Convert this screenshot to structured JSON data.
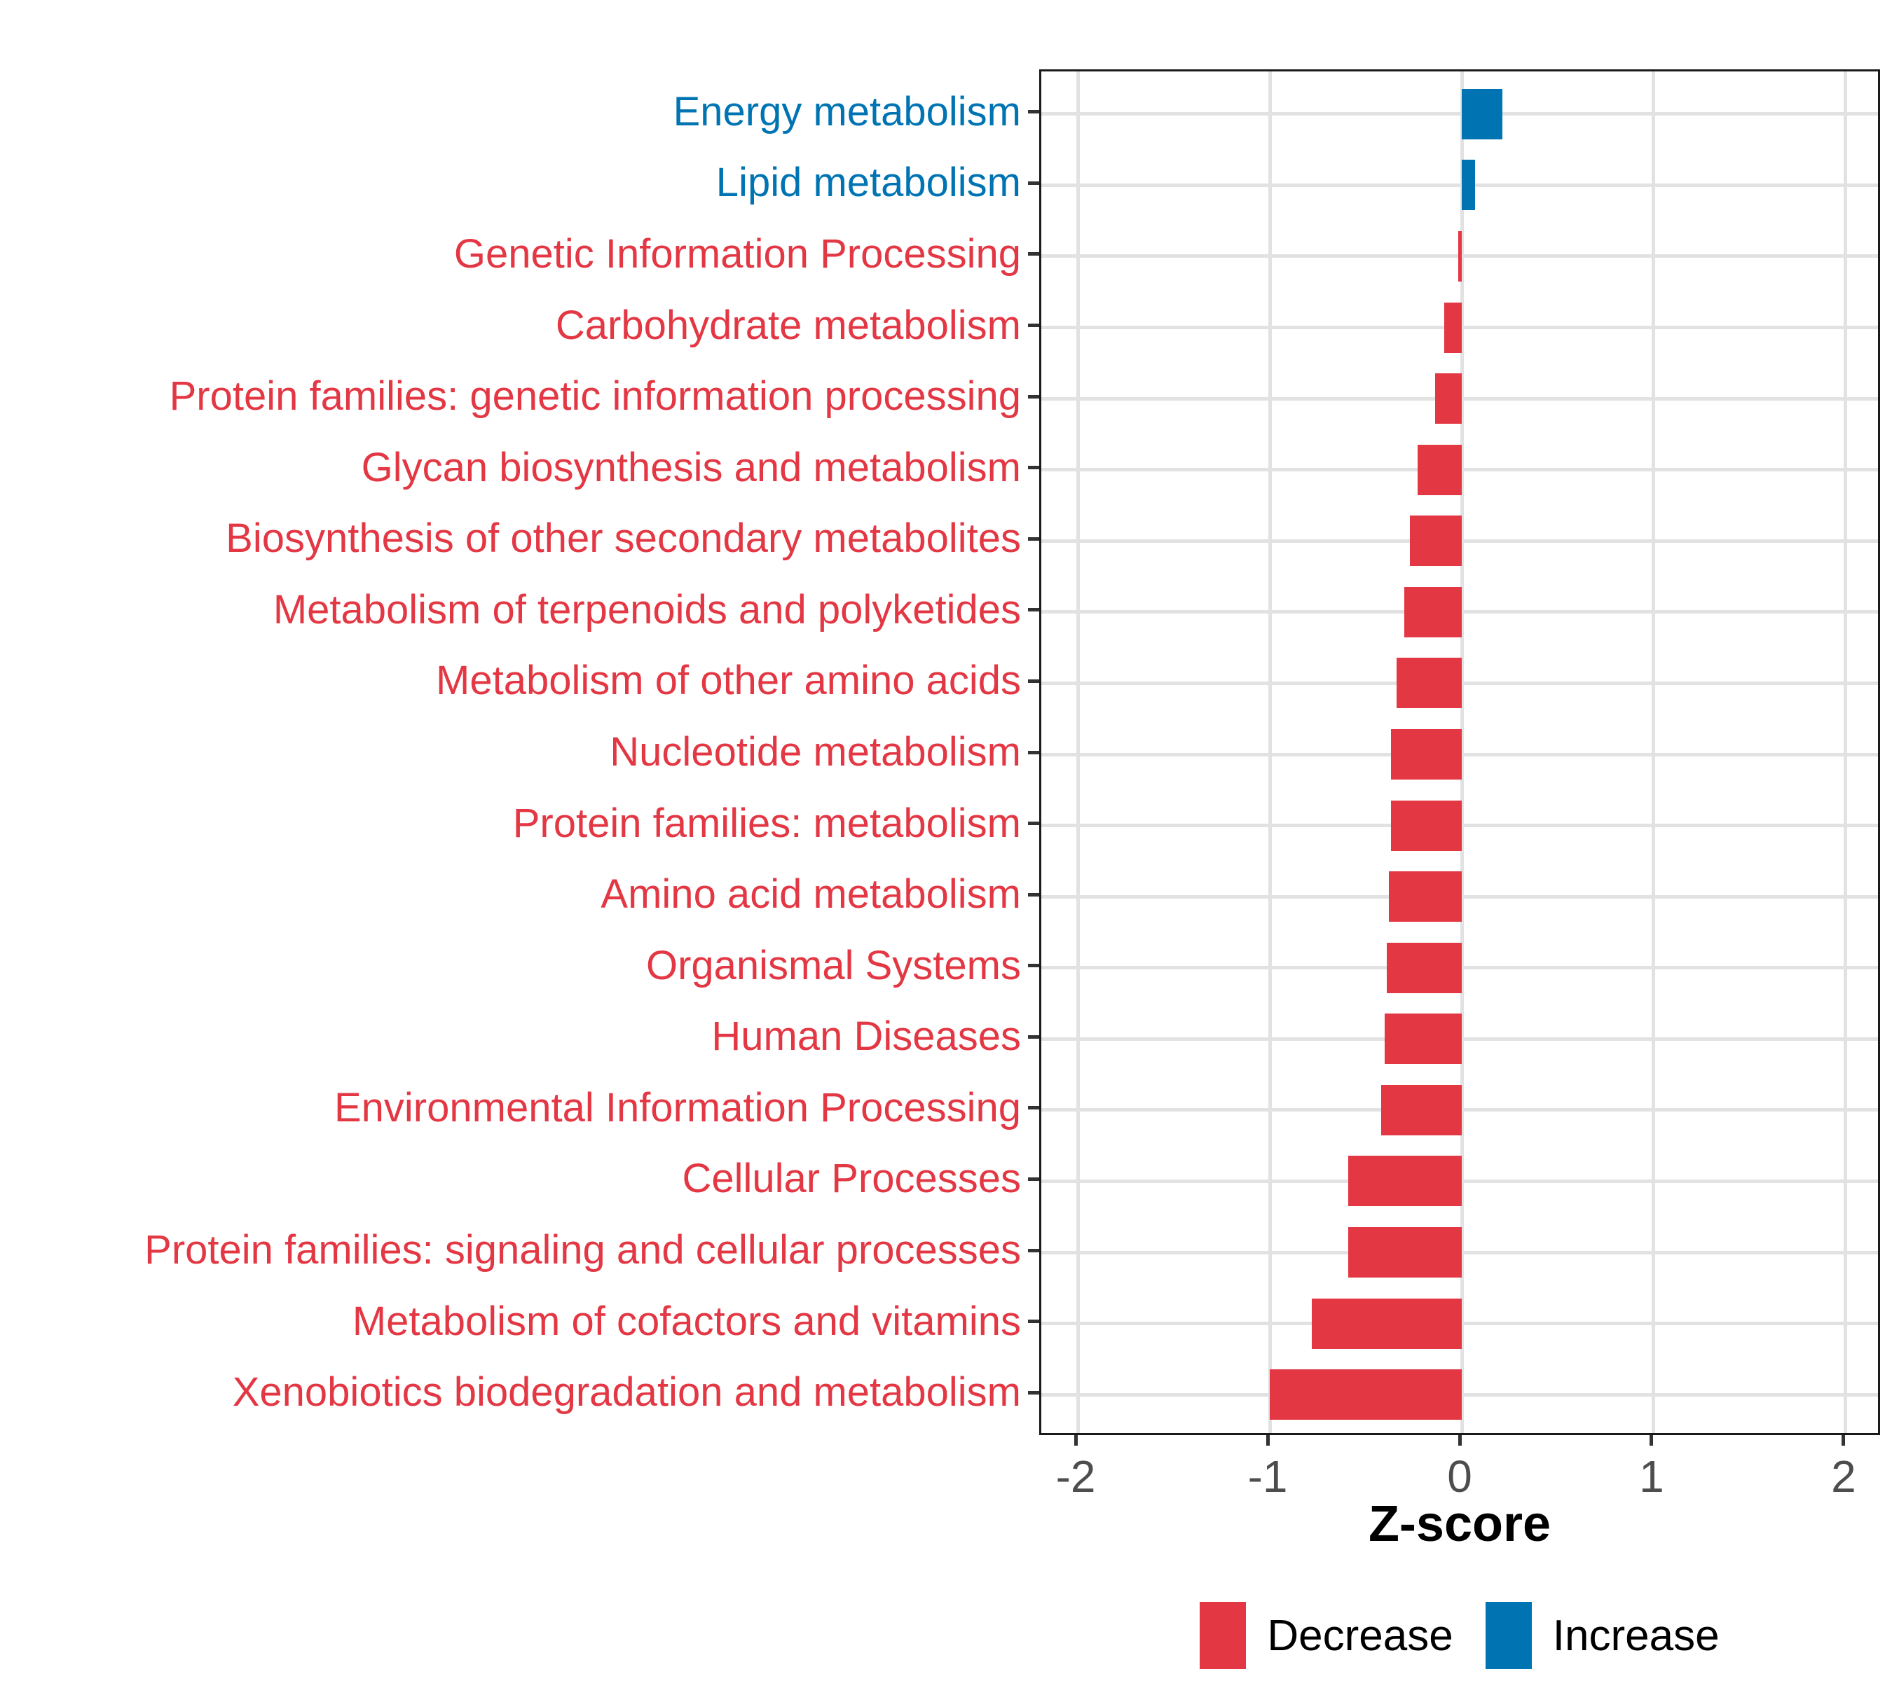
{
  "chart_data": {
    "type": "bar",
    "orientation": "horizontal",
    "xlabel": "Z-score",
    "x_ticks": [
      "-2",
      "-1",
      "0",
      "1",
      "2"
    ],
    "x_tick_values": [
      -2,
      -1,
      0,
      1,
      2
    ],
    "xlim": [
      -2.19,
      2.19
    ],
    "grid": "major-on",
    "legend_position": "bottom",
    "categories": [
      "Energy metabolism",
      "Lipid metabolism",
      "Genetic Information Processing",
      "Carbohydrate metabolism",
      "Protein families: genetic information processing",
      "Glycan biosynthesis and metabolism",
      "Biosynthesis of other secondary metabolites",
      "Metabolism of terpenoids and polyketides",
      "Metabolism of other amino acids",
      "Nucleotide metabolism",
      "Protein families: metabolism",
      "Amino acid metabolism",
      "Organismal Systems",
      "Human Diseases",
      "Environmental Information Processing",
      "Cellular Processes",
      "Protein families: signaling and cellular processes",
      "Metabolism of cofactors and vitamins",
      "Xenobiotics biodegradation and metabolism"
    ],
    "values": [
      0.21,
      0.07,
      -0.02,
      -0.09,
      -0.14,
      -0.23,
      -0.27,
      -0.3,
      -0.34,
      -0.37,
      -0.37,
      -0.38,
      -0.39,
      -0.4,
      -0.42,
      -0.59,
      -0.59,
      -0.78,
      -1.0
    ],
    "directions": [
      "Increase",
      "Increase",
      "Decrease",
      "Decrease",
      "Decrease",
      "Decrease",
      "Decrease",
      "Decrease",
      "Decrease",
      "Decrease",
      "Decrease",
      "Decrease",
      "Decrease",
      "Decrease",
      "Decrease",
      "Decrease",
      "Decrease",
      "Decrease",
      "Decrease"
    ],
    "colors": {
      "Decrease": "#e33744",
      "Increase": "#0074b3"
    },
    "legend": [
      {
        "label": "Decrease",
        "color": "#e33744"
      },
      {
        "label": "Increase",
        "color": "#0074b3"
      }
    ],
    "axis_text_color": "#4d4d4d",
    "gridline_color": "#e2e2e2"
  }
}
